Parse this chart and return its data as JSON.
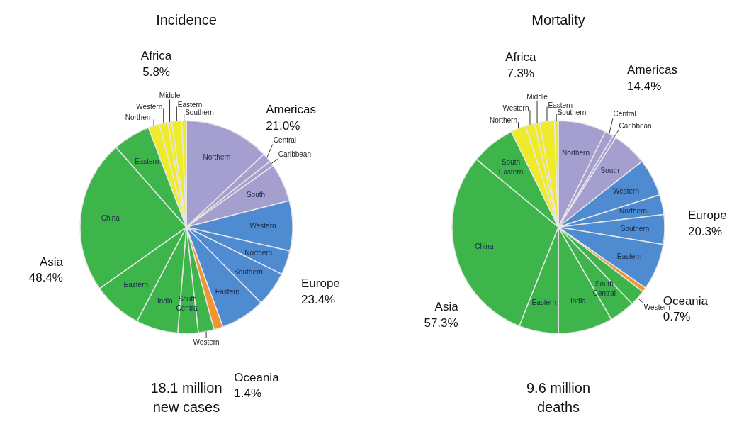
{
  "chart_data": [
    {
      "type": "pie",
      "title": "Incidence",
      "subtitle": "18.1 million\nnew cases",
      "categories": [
        "Northern",
        "Central",
        "Caribbean",
        "South",
        "Western",
        "Northern",
        "Southern",
        "Eastern",
        null,
        "Western",
        "South\nCentral",
        "India",
        "Eastern",
        "China",
        "Eastern",
        "Northern",
        "Western",
        "Middle",
        "Eastern",
        "Southern"
      ],
      "values": [
        13.0,
        1.4,
        0.8,
        5.8,
        7.6,
        3.7,
        5.3,
        6.8,
        1.4,
        2.4,
        3.1,
        6.4,
        7.5,
        23.3,
        5.7,
        1.7,
        1.3,
        0.6,
        1.5,
        0.7
      ],
      "colors": [
        "#a59fd0",
        "#a59fd0",
        "#a59fd0",
        "#a59fd0",
        "#4f8bd0",
        "#4f8bd0",
        "#4f8bd0",
        "#4f8bd0",
        "#f39433",
        "#3db54a",
        "#3db54a",
        "#3db54a",
        "#3db54a",
        "#3db54a",
        "#3db54a",
        "#f0ea2c",
        "#f0ea2c",
        "#f0ea2c",
        "#f0ea2c",
        "#f0ea2c"
      ],
      "annotations": [
        "Americas\n21.0%",
        "Europe\n23.4%",
        "Oceania\n1.4%",
        "Asia\n48.4%",
        "Africa\n5.8%"
      ]
    },
    {
      "type": "pie",
      "title": "Mortality",
      "subtitle": "9.6 million\ndeaths",
      "categories": [
        "Northern",
        "Central",
        "Caribbean",
        "South",
        "Western",
        "Northern",
        "Southern",
        "Eastern",
        null,
        "Western",
        "South\nCentral",
        "India",
        "Eastern",
        "China",
        "South\nEastern",
        "Northern",
        "Western",
        "Middle",
        "Eastern",
        "Southern"
      ],
      "values": [
        7.3,
        1.3,
        0.5,
        5.3,
        5.7,
        3.0,
        4.5,
        7.1,
        0.7,
        2.4,
        3.9,
        8.3,
        6.0,
        30.0,
        6.7,
        2.3,
        1.4,
        0.8,
        2.2,
        0.6
      ],
      "colors": [
        "#a59fd0",
        "#a59fd0",
        "#a59fd0",
        "#a59fd0",
        "#4f8bd0",
        "#4f8bd0",
        "#4f8bd0",
        "#4f8bd0",
        "#f39433",
        "#3db54a",
        "#3db54a",
        "#3db54a",
        "#3db54a",
        "#3db54a",
        "#3db54a",
        "#f0ea2c",
        "#f0ea2c",
        "#f0ea2c",
        "#f0ea2c",
        "#f0ea2c"
      ],
      "annotations": [
        "Americas\n14.4%",
        "Europe\n20.3%",
        "Oceania\n0.7%",
        "Asia\n57.3%",
        "Africa\n7.3%"
      ]
    }
  ]
}
